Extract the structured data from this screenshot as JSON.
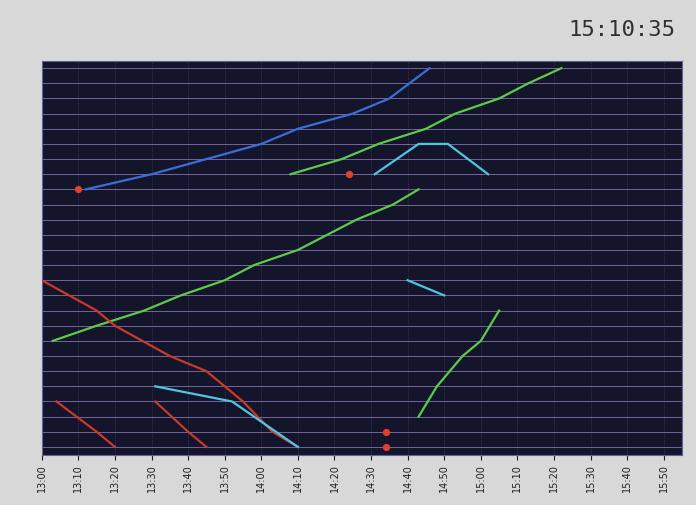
{
  "chart_data": {
    "type": "line",
    "annotations": [
      {
        "text": "15:10:35"
      }
    ],
    "xlim": [
      780,
      955
    ],
    "xticks": [
      {
        "value": 780,
        "label": "13:00"
      },
      {
        "value": 790,
        "label": "13:10"
      },
      {
        "value": 800,
        "label": "13:20"
      },
      {
        "value": 810,
        "label": "13:30"
      },
      {
        "value": 820,
        "label": "13:40"
      },
      {
        "value": 830,
        "label": "13:50"
      },
      {
        "value": 840,
        "label": "14:00"
      },
      {
        "value": 850,
        "label": "14:10"
      },
      {
        "value": 860,
        "label": "14:20"
      },
      {
        "value": 870,
        "label": "14:30"
      },
      {
        "value": 880,
        "label": "14:40"
      },
      {
        "value": 890,
        "label": "14:50"
      },
      {
        "value": 900,
        "label": "15:00"
      },
      {
        "value": 910,
        "label": "15:10"
      },
      {
        "value": 920,
        "label": "15:20"
      },
      {
        "value": 930,
        "label": "15:30"
      },
      {
        "value": 940,
        "label": "15:40"
      },
      {
        "value": 950,
        "label": "15:50"
      }
    ],
    "ylim": [
      25.5,
      -0.5
    ],
    "yticks": [
      0,
      1,
      2,
      3,
      4,
      5,
      6,
      7,
      8,
      9,
      10,
      11,
      12,
      13,
      14,
      15,
      16,
      17,
      18,
      19,
      20,
      21,
      22,
      23,
      24,
      25
    ],
    "tick_labels": "x",
    "grid": true,
    "series": [
      {
        "color": "#3a6fd8",
        "x": [
          792,
          810,
          825,
          840,
          850,
          865,
          875,
          886
        ],
        "values": [
          8,
          7,
          6,
          5,
          4,
          3,
          2,
          0
        ]
      },
      {
        "color": "#5ccc4a",
        "x": [
          848,
          862,
          872,
          885,
          893,
          905,
          913,
          922
        ],
        "values": [
          7,
          6,
          5,
          4,
          3,
          2,
          1,
          0
        ]
      },
      {
        "color": "#4fc6e0",
        "x": [
          871,
          883,
          891,
          902
        ],
        "values": [
          7,
          5,
          5,
          7
        ]
      },
      {
        "color": "#5ccc4a",
        "x": [
          783,
          795,
          808,
          818,
          830,
          838,
          850,
          858,
          866,
          876,
          883
        ],
        "values": [
          18,
          17,
          16,
          15,
          14,
          13,
          12,
          11,
          10,
          9,
          8
        ]
      },
      {
        "color": "#c83a2a",
        "x": [
          780,
          795,
          800,
          815,
          825,
          835,
          843,
          850
        ],
        "values": [
          14,
          16,
          17,
          19,
          20,
          22,
          24,
          25
        ]
      },
      {
        "color": "#c83a2a",
        "x": [
          784,
          795,
          800
        ],
        "values": [
          22,
          24,
          25
        ]
      },
      {
        "color": "#c83a2a",
        "x": [
          811,
          820,
          825
        ],
        "values": [
          22,
          24,
          25
        ]
      },
      {
        "color": "#4fc6e0",
        "x": [
          811,
          832,
          850
        ],
        "values": [
          21,
          22,
          25
        ]
      },
      {
        "color": "#5ccc4a",
        "x": [
          883,
          888,
          895,
          900,
          905
        ],
        "values": [
          23,
          21,
          19,
          18,
          16
        ]
      },
      {
        "color": "#4fc6e0",
        "x": [
          880,
          890
        ],
        "values": [
          14,
          15
        ]
      },
      {
        "type": "scatter",
        "marker": "o",
        "color": "#e04030",
        "x": [
          790,
          864,
          874,
          874
        ],
        "values": [
          8,
          7,
          24,
          25
        ]
      }
    ]
  }
}
